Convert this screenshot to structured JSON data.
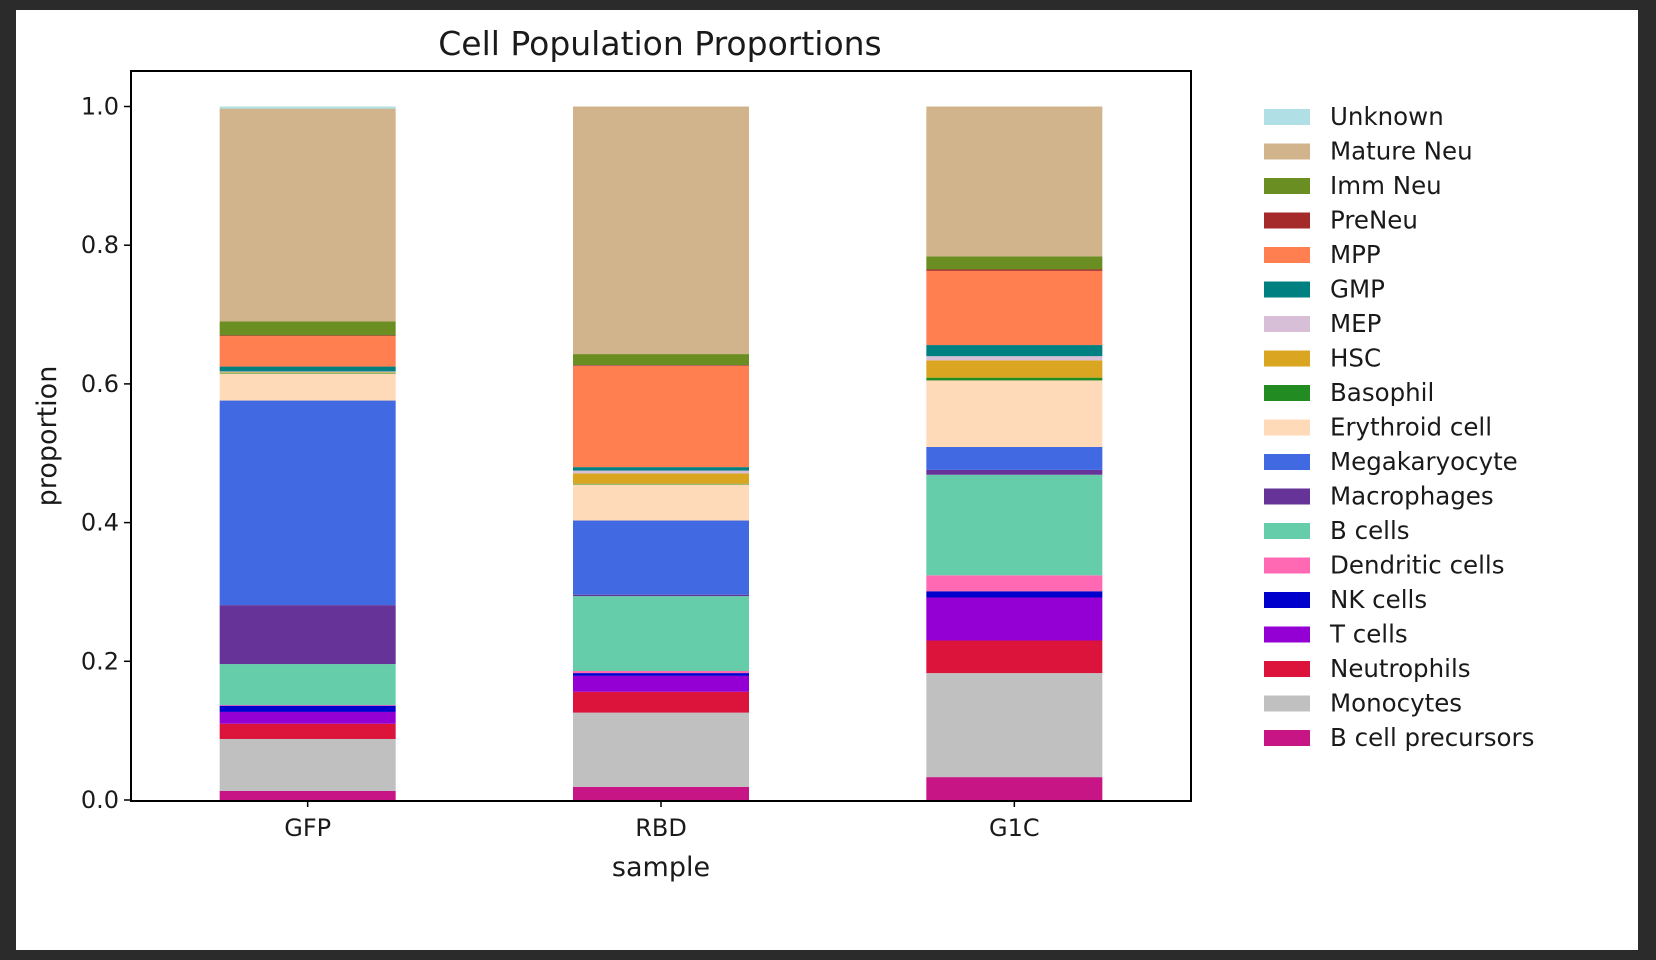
{
  "chart_data": {
    "type": "bar",
    "stacked": true,
    "title": "Cell Population Proportions",
    "xlabel": "sample",
    "ylabel": "proportion",
    "ylim": [
      0,
      1.05
    ],
    "yticks": [
      "0.0",
      "0.2",
      "0.4",
      "0.6",
      "0.8",
      "1.0"
    ],
    "grid": false,
    "legend_position": "outside-right",
    "categories": [
      "GFP",
      "RBD",
      "G1C"
    ],
    "series": [
      {
        "name": "B cell precursors",
        "color": "#c71585",
        "values": [
          0.013,
          0.019,
          0.033
        ]
      },
      {
        "name": "Monocytes",
        "color": "#c0c0c0",
        "values": [
          0.075,
          0.107,
          0.15
        ]
      },
      {
        "name": "Neutrophils",
        "color": "#dc143c",
        "values": [
          0.022,
          0.03,
          0.047
        ]
      },
      {
        "name": "T cells",
        "color": "#9400d3",
        "values": [
          0.017,
          0.023,
          0.062
        ]
      },
      {
        "name": "NK cells",
        "color": "#0000cd",
        "values": [
          0.009,
          0.004,
          0.009
        ]
      },
      {
        "name": "Dendritic cells",
        "color": "#ff69b4",
        "values": [
          0.001,
          0.003,
          0.023
        ]
      },
      {
        "name": "B cells",
        "color": "#66cdaa",
        "values": [
          0.059,
          0.108,
          0.145
        ]
      },
      {
        "name": "Macrophages",
        "color": "#663399",
        "values": [
          0.085,
          0.002,
          0.007
        ]
      },
      {
        "name": "Megakaryocyte",
        "color": "#4169e1",
        "values": [
          0.295,
          0.107,
          0.033
        ]
      },
      {
        "name": "Erythroid cell",
        "color": "#ffdab9",
        "values": [
          0.039,
          0.052,
          0.096
        ]
      },
      {
        "name": "Basophil",
        "color": "#228b22",
        "values": [
          0.001,
          0.001,
          0.004
        ]
      },
      {
        "name": "HSC",
        "color": "#daa520",
        "values": [
          0.001,
          0.015,
          0.025
        ]
      },
      {
        "name": "MEP",
        "color": "#d8bfd8",
        "values": [
          0.001,
          0.004,
          0.006
        ]
      },
      {
        "name": "GMP",
        "color": "#008080",
        "values": [
          0.007,
          0.005,
          0.016
        ]
      },
      {
        "name": "MPP",
        "color": "#ff7f50",
        "values": [
          0.044,
          0.146,
          0.107
        ]
      },
      {
        "name": "PreNeu",
        "color": "#a52a2a",
        "values": [
          0.001,
          0.001,
          0.002
        ]
      },
      {
        "name": "Imm Neu",
        "color": "#6b8e23",
        "values": [
          0.02,
          0.016,
          0.019
        ]
      },
      {
        "name": "Mature Neu",
        "color": "#d2b48c",
        "values": [
          0.307,
          0.357,
          0.216
        ]
      },
      {
        "name": "Unknown",
        "color": "#b0e0e6",
        "values": [
          0.003,
          0.0,
          0.0
        ]
      }
    ]
  }
}
